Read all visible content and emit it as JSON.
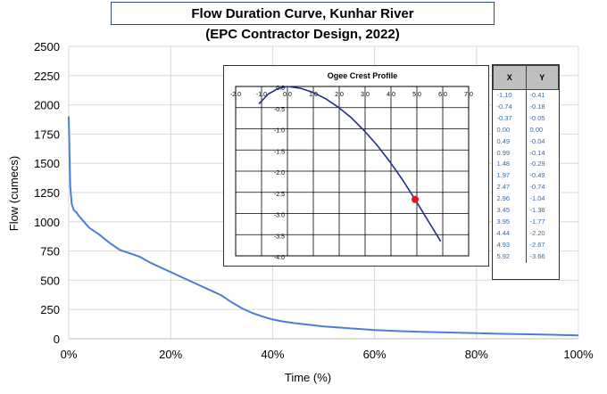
{
  "chart_data": [
    {
      "type": "line",
      "title": "Flow Duration Curve, Kunhar River",
      "subtitle": "(EPC Contractor Design, 2022)",
      "xlabel": "Time (%)",
      "ylabel": "Flow (cumecs)",
      "xlim": [
        0,
        100
      ],
      "ylim": [
        0,
        2500
      ],
      "x_ticks": [
        "0%",
        "20%",
        "40%",
        "60%",
        "80%",
        "100%"
      ],
      "y_ticks": [
        "0",
        "250",
        "500",
        "750",
        "1000",
        "1250",
        "1500",
        "1750",
        "2000",
        "2250",
        "2500"
      ],
      "grid": true,
      "legend": "none",
      "series": [
        {
          "color": "#4a7fd4",
          "x": [
            0,
            0.3,
            0.6,
            1,
            1.5,
            2,
            3,
            4,
            5,
            6,
            8,
            10,
            12,
            14,
            16,
            18,
            20,
            22,
            24,
            26,
            28,
            30,
            32,
            34,
            36,
            38,
            40,
            42,
            44,
            46,
            48,
            50,
            55,
            60,
            65,
            70,
            75,
            80,
            85,
            90,
            95,
            100
          ],
          "y": [
            1900,
            1300,
            1150,
            1100,
            1080,
            1050,
            1000,
            950,
            920,
            890,
            820,
            760,
            730,
            700,
            650,
            610,
            570,
            530,
            490,
            450,
            410,
            370,
            310,
            260,
            220,
            190,
            165,
            148,
            135,
            125,
            115,
            105,
            90,
            75,
            65,
            58,
            53,
            48,
            42,
            38,
            34,
            28
          ]
        }
      ]
    },
    {
      "type": "line",
      "title": "Ogee Crest Profile",
      "xlim": [
        -2.0,
        7.0
      ],
      "ylim": [
        -4.0,
        0.0
      ],
      "x_ticks": [
        "-2.0",
        "-1.0",
        "0.0",
        "1.0",
        "2.0",
        "3.0",
        "4.0",
        "5.0",
        "6.0",
        "7.0"
      ],
      "y_ticks": [
        "0.0",
        "-0.5",
        "-1.0",
        "-1.5",
        "-2.0",
        "-2.5",
        "-3.0",
        "-3.5",
        "-4.0"
      ],
      "grid": true,
      "series": [
        {
          "color": "#1f2f8c",
          "x": [
            -1.1,
            -0.74,
            -0.37,
            0.0,
            0.49,
            0.99,
            1.48,
            1.97,
            2.47,
            2.96,
            3.45,
            3.95,
            4.44,
            4.93,
            5.92
          ],
          "y": [
            -0.41,
            -0.18,
            -0.05,
            0.0,
            -0.04,
            -0.14,
            -0.29,
            -0.49,
            -0.74,
            -1.04,
            -1.38,
            -1.77,
            -2.2,
            -2.67,
            -3.66
          ]
        }
      ],
      "highlight_point": {
        "x": 4.93,
        "y": -2.67,
        "color": "#e8141a"
      }
    }
  ],
  "table": {
    "headers": [
      "X",
      "Y"
    ],
    "rows": [
      [
        "-1.10",
        "-0.41"
      ],
      [
        "-0.74",
        "-0.18"
      ],
      [
        "-0.37",
        "-0.05"
      ],
      [
        "0.00",
        "0.00"
      ],
      [
        "0.49",
        "-0.04"
      ],
      [
        "0.99",
        "-0.14"
      ],
      [
        "1.48",
        "-0.29"
      ],
      [
        "1.97",
        "-0.49"
      ],
      [
        "2.47",
        "-0.74"
      ],
      [
        "2.96",
        "-1.04"
      ],
      [
        "3.45",
        "-1.38"
      ],
      [
        "3.95",
        "-1.77"
      ],
      [
        "4.44",
        "-2.20"
      ],
      [
        "4.93",
        "-2.67"
      ],
      [
        "5.92",
        "-3.66"
      ]
    ]
  }
}
